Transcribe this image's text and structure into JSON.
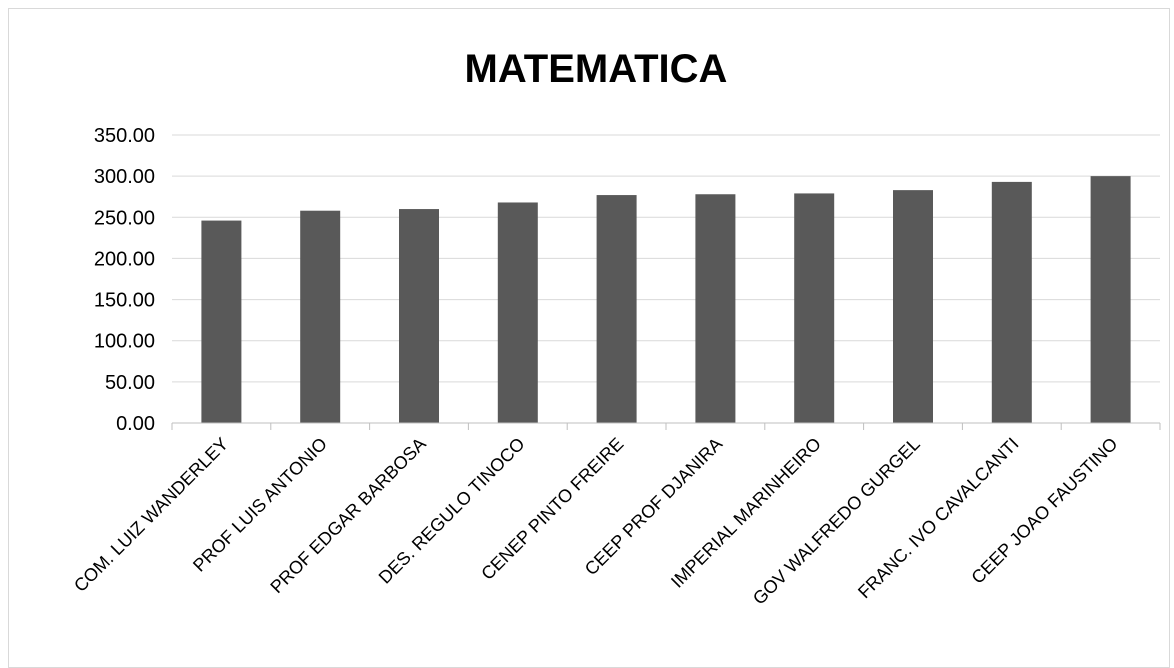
{
  "chart_data": {
    "type": "bar",
    "title": "MATEMATICA",
    "xlabel": "",
    "ylabel": "",
    "categories": [
      "COM. LUIZ WANDERLEY",
      "PROF LUIS ANTONIO",
      "PROF EDGAR BARBOSA",
      "DES. REGULO TINOCO",
      "CENEP PINTO FREIRE",
      "CEEP PROF DJANIRA",
      "IMPERIAL MARINHEIRO",
      "GOV WALFREDO GURGEL",
      "FRANC. IVO CAVALCANTI",
      "CEEP JOAO FAUSTINO"
    ],
    "values": [
      246,
      258,
      260,
      268,
      277,
      278,
      279,
      283,
      293,
      300
    ],
    "ylim": [
      0,
      350
    ],
    "yticks": [
      "0.00",
      "50.00",
      "100.00",
      "150.00",
      "200.00",
      "250.00",
      "300.00",
      "350.00"
    ],
    "ytick_values": [
      0,
      50,
      100,
      150,
      200,
      250,
      300,
      350
    ],
    "grid": true,
    "legend": "none",
    "colors": {
      "bar": "#595959",
      "grid": "#d9d9d9",
      "axis": "#bfbfbf"
    }
  }
}
